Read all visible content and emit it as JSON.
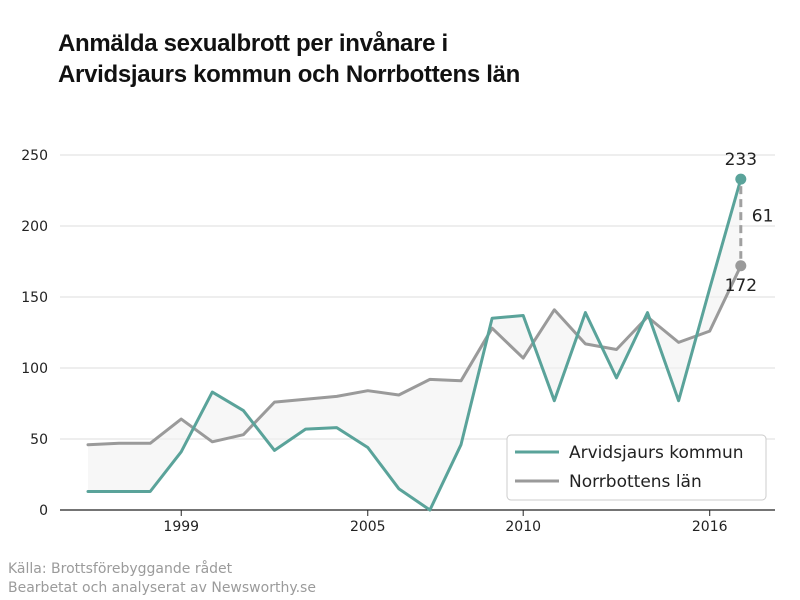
{
  "title_lines": [
    "Anmälda sexualbrott per invånare i",
    "Arvidsjaurs kommun och Norrbottens län"
  ],
  "source_lines": [
    "Källa: Brottsförebyggande rådet",
    "Bearbetat och analyserat av Newsworthy.se"
  ],
  "chart_data": {
    "type": "line",
    "title": "Anmälda sexualbrott per invånare i Arvidsjaurs kommun och Norrbottens län",
    "x": [
      1996,
      1997,
      1998,
      1999,
      2000,
      2001,
      2002,
      2003,
      2004,
      2005,
      2006,
      2007,
      2008,
      2009,
      2010,
      2011,
      2012,
      2013,
      2014,
      2015,
      2016,
      2017
    ],
    "x_ticks": [
      1999,
      2005,
      2010,
      2016
    ],
    "y_ticks": [
      0,
      50,
      100,
      150,
      200,
      250
    ],
    "ylim": [
      0,
      250
    ],
    "xlim": [
      1995.1,
      2018.1
    ],
    "grid": true,
    "legend_position": "bottom-right",
    "series": [
      {
        "name": "Arvidsjaurs kommun",
        "color": "#5aa39a",
        "values": [
          13,
          13,
          13,
          41,
          83,
          70,
          42,
          57,
          58,
          44,
          15,
          0,
          46,
          135,
          137,
          77,
          139,
          93,
          139,
          77,
          156,
          233
        ]
      },
      {
        "name": "Norrbottens län",
        "color": "#9a9a9a",
        "values": [
          46,
          47,
          47,
          64,
          48,
          53,
          76,
          78,
          80,
          84,
          81,
          92,
          91,
          128,
          107,
          141,
          117,
          113,
          136,
          118,
          126,
          172
        ]
      }
    ],
    "annotations": {
      "last_value_a": "233",
      "last_value_b": "172",
      "difference": "61"
    }
  }
}
